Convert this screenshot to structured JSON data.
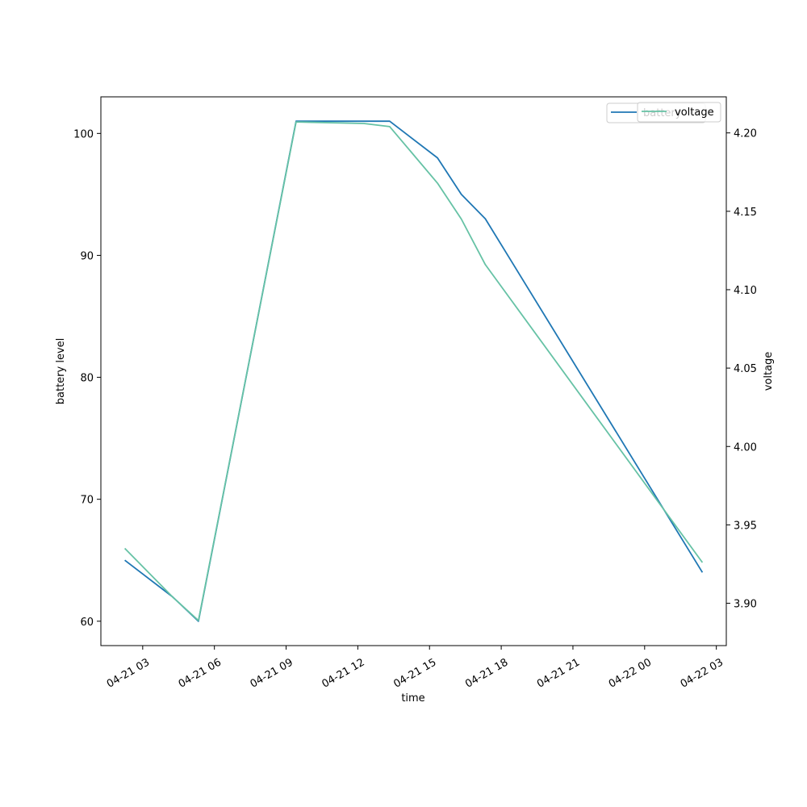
{
  "chart_data": {
    "type": "line",
    "xlabel": "time",
    "ylabel_left": "battery level",
    "ylabel_right": "voltage",
    "x": [
      "2024-04-21T02:15",
      "2024-04-21T04:15",
      "2024-04-21T05:20",
      "2024-04-21T09:25",
      "2024-04-21T13:20",
      "2024-04-21T15:20",
      "2024-04-21T16:20",
      "2024-04-21T17:20",
      "2024-04-22T02:25"
    ],
    "x_tick_labels": [
      "04-21 03",
      "04-21 06",
      "04-21 09",
      "04-21 12",
      "04-21 15",
      "04-21 18",
      "04-21 21",
      "04-22 00",
      "04-22 03"
    ],
    "x_ticks": [
      "2024-04-21T03:00",
      "2024-04-21T06:00",
      "2024-04-21T09:00",
      "2024-04-21T12:00",
      "2024-04-21T15:00",
      "2024-04-21T18:00",
      "2024-04-21T21:00",
      "2024-04-22T00:00",
      "2024-04-22T03:00"
    ],
    "xlim": [
      "2024-04-21T01:15",
      "2024-04-22T03:25"
    ],
    "y_left_ticks": [
      60,
      70,
      80,
      90,
      100
    ],
    "ylim_left": [
      58,
      103
    ],
    "y_right_ticks": [
      "3.90",
      "3.95",
      "4.00",
      "4.05",
      "4.10",
      "4.15",
      "4.20"
    ],
    "ylim_right": [
      3.873,
      4.223
    ],
    "legend_placement": "upper-right",
    "grid": false,
    "series": [
      {
        "name": "battery",
        "axis": "left",
        "color": "#1f77b4",
        "x": [
          "2024-04-21T02:15",
          "2024-04-21T04:15",
          "2024-04-21T05:20",
          "2024-04-21T09:25",
          "2024-04-21T13:20",
          "2024-04-21T15:20",
          "2024-04-21T16:20",
          "2024-04-21T17:20",
          "2024-04-22T02:25"
        ],
        "values": [
          65,
          62,
          60,
          101,
          101,
          98,
          95,
          93,
          64
        ]
      },
      {
        "name": "voltage",
        "axis": "right",
        "color": "#66c2a5",
        "x": [
          "2024-04-21T02:15",
          "2024-04-21T04:15",
          "2024-04-21T05:20",
          "2024-04-21T09:25",
          "2024-04-21T12:15",
          "2024-04-21T13:20",
          "2024-04-21T15:20",
          "2024-04-21T16:20",
          "2024-04-21T17:20",
          "2024-04-22T02:25"
        ],
        "values": [
          3.935,
          3.904,
          3.889,
          4.207,
          4.206,
          4.204,
          4.168,
          4.145,
          4.116,
          3.926
        ]
      }
    ]
  }
}
